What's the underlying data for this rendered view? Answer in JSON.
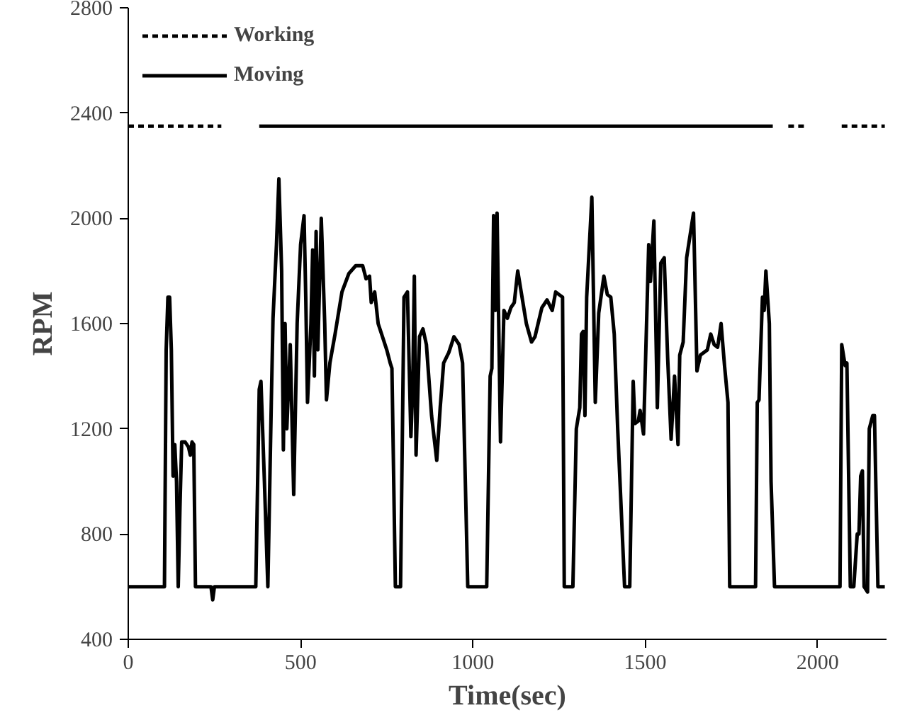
{
  "chart_data": {
    "type": "line",
    "xlabel": "Time(sec)",
    "ylabel": "RPM",
    "xlim": [
      0,
      2200
    ],
    "ylim": [
      400,
      2800
    ],
    "xticks": [
      0,
      500,
      1000,
      1500,
      2000
    ],
    "yticks": [
      400,
      800,
      1200,
      1600,
      2000,
      2400,
      2800
    ],
    "grid": false,
    "legend": "top left",
    "marker": "none",
    "series": [
      {
        "color": "#000000",
        "line_style": "solid",
        "x": [
          0,
          105,
          110,
          115,
          120,
          125,
          130,
          135,
          140,
          145,
          150,
          155,
          165,
          175,
          180,
          185,
          190,
          195,
          240,
          245,
          250,
          370,
          380,
          385,
          395,
          405,
          415,
          420,
          430,
          437,
          445,
          450,
          455,
          460,
          470,
          480,
          490,
          500,
          510,
          515,
          520,
          530,
          535,
          540,
          545,
          550,
          560,
          570,
          575,
          585,
          600,
          620,
          640,
          660,
          680,
          690,
          700,
          705,
          715,
          725,
          740,
          750,
          760,
          765,
          775,
          790,
          800,
          810,
          820,
          825,
          830,
          835,
          845,
          855,
          865,
          880,
          895,
          905,
          915,
          930,
          945,
          960,
          970,
          985,
          1040,
          1050,
          1055,
          1060,
          1065,
          1070,
          1080,
          1090,
          1100,
          1110,
          1120,
          1130,
          1140,
          1155,
          1170,
          1180,
          1200,
          1215,
          1230,
          1240,
          1250,
          1260,
          1265,
          1290,
          1300,
          1310,
          1315,
          1320,
          1325,
          1330,
          1345,
          1355,
          1365,
          1380,
          1390,
          1400,
          1410,
          1420,
          1430,
          1440,
          1455,
          1465,
          1470,
          1480,
          1485,
          1495,
          1510,
          1515,
          1525,
          1535,
          1545,
          1555,
          1565,
          1575,
          1585,
          1595,
          1600,
          1610,
          1620,
          1640,
          1650,
          1660,
          1680,
          1690,
          1700,
          1710,
          1720,
          1730,
          1740,
          1745,
          1820,
          1825,
          1830,
          1840,
          1845,
          1850,
          1860,
          1865,
          1875,
          2065,
          2070,
          2080,
          2085,
          2095,
          2105,
          2115,
          2120,
          2125,
          2130,
          2135,
          2145,
          2150,
          2160,
          2165,
          2175,
          2195
        ],
        "values": [
          600,
          600,
          1500,
          1700,
          1700,
          1500,
          1020,
          1140,
          1000,
          600,
          900,
          1150,
          1150,
          1130,
          1100,
          1150,
          1140,
          600,
          600,
          550,
          600,
          600,
          1350,
          1380,
          1000,
          600,
          1300,
          1620,
          1900,
          2150,
          1800,
          1120,
          1600,
          1200,
          1520,
          950,
          1600,
          1900,
          2010,
          1700,
          1300,
          1600,
          1880,
          1400,
          1950,
          1500,
          2000,
          1600,
          1310,
          1450,
          1560,
          1720,
          1790,
          1820,
          1820,
          1770,
          1780,
          1680,
          1720,
          1600,
          1540,
          1500,
          1450,
          1430,
          600,
          600,
          1700,
          1720,
          1170,
          1340,
          1780,
          1100,
          1550,
          1580,
          1520,
          1250,
          1080,
          1280,
          1450,
          1490,
          1550,
          1520,
          1450,
          600,
          600,
          1400,
          1430,
          2010,
          1650,
          2020,
          1150,
          1650,
          1620,
          1660,
          1680,
          1800,
          1720,
          1600,
          1530,
          1550,
          1660,
          1690,
          1650,
          1720,
          1710,
          1700,
          600,
          600,
          1200,
          1280,
          1560,
          1570,
          1250,
          1700,
          2080,
          1300,
          1640,
          1780,
          1710,
          1700,
          1560,
          1200,
          900,
          600,
          600,
          1380,
          1220,
          1230,
          1270,
          1180,
          1900,
          1760,
          1990,
          1280,
          1830,
          1850,
          1470,
          1160,
          1400,
          1140,
          1480,
          1530,
          1850,
          2020,
          1420,
          1480,
          1500,
          1560,
          1520,
          1510,
          1600,
          1440,
          1300,
          600,
          600,
          1300,
          1310,
          1700,
          1650,
          1800,
          1600,
          1000,
          600,
          600,
          1520,
          1440,
          1450,
          600,
          600,
          800,
          800,
          1020,
          1040,
          600,
          580,
          1200,
          1250,
          1250,
          600,
          600
        ]
      },
      {
        "name": "Moving",
        "color": "#000000",
        "line_style": "solid",
        "x": [
          380,
          1870
        ],
        "values": [
          2350,
          2350
        ]
      },
      {
        "name": "Working",
        "color": "#000000",
        "line_style": "dashed",
        "x": [
          0,
          270,
          271,
          1915,
          1965,
          1966,
          2070,
          2195
        ],
        "values": [
          2350,
          2350,
          null,
          2350,
          2350,
          null,
          2350,
          2350
        ]
      }
    ]
  }
}
